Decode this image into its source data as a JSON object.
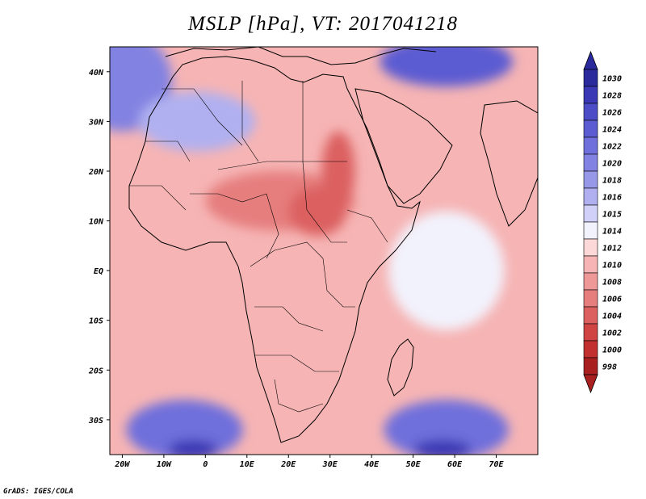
{
  "title": "MSLP [hPa], VT: 2017041218",
  "credit": "GrADS: IGES/COLA",
  "chart_data": {
    "type": "heatmap",
    "variable": "MSLP",
    "units": "hPa",
    "valid_time": "2017041218",
    "lon_range": [
      -23,
      80
    ],
    "lat_range": [
      -37,
      45
    ],
    "x_tick_labels": [
      {
        "lon": -20,
        "label": "20W"
      },
      {
        "lon": -10,
        "label": "10W"
      },
      {
        "lon": 0,
        "label": "0"
      },
      {
        "lon": 10,
        "label": "10E"
      },
      {
        "lon": 20,
        "label": "20E"
      },
      {
        "lon": 30,
        "label": "30E"
      },
      {
        "lon": 40,
        "label": "40E"
      },
      {
        "lon": 50,
        "label": "50E"
      },
      {
        "lon": 60,
        "label": "60E"
      },
      {
        "lon": 70,
        "label": "70E"
      }
    ],
    "y_tick_labels": [
      {
        "lat": 40,
        "label": "40N"
      },
      {
        "lat": 30,
        "label": "30N"
      },
      {
        "lat": 20,
        "label": "20N"
      },
      {
        "lat": 10,
        "label": "10N"
      },
      {
        "lat": 0,
        "label": "EQ"
      },
      {
        "lat": -10,
        "label": "10S"
      },
      {
        "lat": -20,
        "label": "20S"
      },
      {
        "lat": -30,
        "label": "30S"
      }
    ],
    "colorbar": {
      "levels": [
        "1030",
        "1028",
        "1026",
        "1024",
        "1022",
        "1020",
        "1018",
        "1016",
        "1015",
        "1014",
        "1012",
        "1010",
        "1008",
        "1006",
        "1004",
        "1002",
        "1000",
        "998"
      ],
      "colors": [
        "#2a2a9c",
        "#3a38b4",
        "#4c4cc6",
        "#5c5cd2",
        "#7070dc",
        "#8282e2",
        "#9898e8",
        "#b0b0f0",
        "#d0d0f8",
        "#f2f2fc",
        "#fcd8d8",
        "#f6b4b4",
        "#ee9898",
        "#e67e7e",
        "#dc6060",
        "#d04444",
        "#c23030",
        "#a82020"
      ],
      "top_arrow_color": "#2a2a9c",
      "bottom_arrow_color": "#a82020"
    },
    "pressure_regions": [
      {
        "name": "north-atlantic-high",
        "level": "1020",
        "lon": -20,
        "lat": 38,
        "rx": 12,
        "ry": 10
      },
      {
        "name": "north-africa-high",
        "level": "1016",
        "lon": -2,
        "lat": 30,
        "rx": 14,
        "ry": 6
      },
      {
        "name": "eurasia-high",
        "level": "1024",
        "lon": 58,
        "lat": 42,
        "rx": 16,
        "ry": 5
      },
      {
        "name": "sahel-low",
        "level": "1006",
        "lon": 18,
        "lat": 14,
        "rx": 18,
        "ry": 6
      },
      {
        "name": "sudan-low",
        "level": "1004",
        "lon": 27,
        "lat": 12,
        "rx": 7,
        "ry": 5
      },
      {
        "name": "nile-low",
        "level": "1004",
        "lon": 32,
        "lat": 20,
        "rx": 4,
        "ry": 8
      },
      {
        "name": "south-atlantic-high",
        "level": "1022",
        "lon": -5,
        "lat": -32,
        "rx": 14,
        "ry": 6
      },
      {
        "name": "south-atlantic-core",
        "level": "1028",
        "lon": -3,
        "lat": -36,
        "rx": 6,
        "ry": 2
      },
      {
        "name": "south-indian-high",
        "level": "1022",
        "lon": 58,
        "lat": -32,
        "rx": 15,
        "ry": 6
      },
      {
        "name": "south-indian-core",
        "level": "1028",
        "lon": 57,
        "lat": -36,
        "rx": 7,
        "ry": 2
      },
      {
        "name": "indian-ocean-neutral",
        "level": "1014",
        "lon": 58,
        "lat": 0,
        "rx": 14,
        "ry": 12
      }
    ]
  }
}
